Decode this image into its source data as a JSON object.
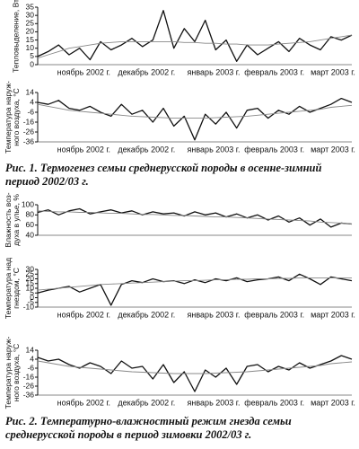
{
  "chart_data": [
    {
      "type": "line",
      "ylabel": [
        "Тепловыделение, Вт"
      ],
      "x": [
        0,
        5,
        10,
        15,
        20,
        25,
        30,
        35,
        40,
        45,
        50,
        55,
        60,
        65,
        70,
        75,
        80,
        85,
        90,
        95,
        100,
        105,
        110,
        115,
        120,
        125,
        130,
        135,
        140,
        145,
        150
      ],
      "xlim": [
        0,
        150
      ],
      "ylim": [
        0,
        35
      ],
      "yticks": [
        0,
        5,
        10,
        15,
        20,
        25,
        30,
        35
      ],
      "xticks": [
        {
          "value": 22,
          "label": "ноябрь 2002 г."
        },
        {
          "value": 52,
          "label": "декабрь 2002 г."
        },
        {
          "value": 84,
          "label": "январь 2003 г."
        },
        {
          "value": 113,
          "label": "февраль 2003 г."
        },
        {
          "value": 141,
          "label": "март 2003 г."
        }
      ],
      "series": [
        {
          "color": "#111",
          "values": [
            5,
            8,
            12,
            6,
            10,
            3,
            14,
            9,
            12,
            16,
            11,
            15,
            33,
            10,
            22,
            14,
            27,
            9,
            15,
            2,
            12,
            6,
            10,
            14,
            8,
            16,
            12,
            9,
            17,
            15,
            18
          ]
        },
        {
          "color": "#888",
          "values": [
            4,
            6,
            8,
            10,
            11,
            12,
            13,
            13.5,
            14,
            14,
            14,
            14,
            14,
            14,
            13.5,
            13.5,
            13,
            13,
            12.5,
            12.5,
            12,
            12,
            12,
            12.5,
            13,
            13.5,
            14,
            15,
            16,
            17,
            18
          ]
        }
      ]
    },
    {
      "type": "line",
      "ylabel": [
        "Температура наруж-",
        "ного воздуха, °С"
      ],
      "x": [
        0,
        5,
        10,
        15,
        20,
        25,
        30,
        35,
        40,
        45,
        50,
        55,
        60,
        65,
        70,
        75,
        80,
        85,
        90,
        95,
        100,
        105,
        110,
        115,
        120,
        125,
        130,
        135,
        140,
        145,
        150
      ],
      "xlim": [
        0,
        150
      ],
      "ylim": [
        -36,
        14
      ],
      "yticks": [
        14,
        4,
        -6,
        -16,
        -26,
        -36
      ],
      "xticks": [
        {
          "value": 22,
          "label": "ноябрь 2002 г."
        },
        {
          "value": 52,
          "label": "декабрь 2002 г."
        },
        {
          "value": 84,
          "label": "январь 2003 г."
        },
        {
          "value": 113,
          "label": "февраль 2003 г."
        },
        {
          "value": 141,
          "label": "март 2003 г."
        }
      ],
      "series": [
        {
          "color": "#111",
          "values": [
            4,
            2,
            6,
            -2,
            -4,
            0,
            -6,
            -10,
            2,
            -8,
            -4,
            -16,
            -2,
            -20,
            -10,
            -34,
            -8,
            -18,
            -6,
            -22,
            -4,
            -2,
            -12,
            -4,
            -8,
            0,
            -6,
            -2,
            2,
            8,
            4
          ]
        },
        {
          "color": "#888",
          "values": [
            2,
            0,
            -2,
            -4,
            -5,
            -6,
            -7,
            -8,
            -9,
            -10,
            -10.5,
            -11,
            -11.5,
            -12,
            -12,
            -12,
            -12,
            -11.5,
            -11,
            -10.5,
            -10,
            -9,
            -8,
            -7,
            -6,
            -5,
            -4,
            -3,
            -1,
            0,
            1
          ]
        }
      ]
    },
    {
      "type": "line",
      "ylabel": [
        "Влажность воз-",
        "духа в улье, %"
      ],
      "x": [
        0,
        5,
        10,
        15,
        20,
        25,
        30,
        35,
        40,
        45,
        50,
        55,
        60,
        65,
        70,
        75,
        80,
        85,
        90,
        95,
        100,
        105,
        110,
        115,
        120,
        125,
        130,
        135,
        140,
        145,
        150
      ],
      "xlim": [
        0,
        150
      ],
      "ylim": [
        40,
        100
      ],
      "yticks": [
        40,
        60,
        80,
        100
      ],
      "series": [
        {
          "color": "#111",
          "values": [
            85,
            90,
            80,
            88,
            92,
            82,
            86,
            90,
            84,
            88,
            80,
            86,
            82,
            84,
            78,
            86,
            80,
            84,
            76,
            82,
            74,
            80,
            70,
            78,
            66,
            74,
            60,
            72,
            56,
            64,
            62
          ]
        },
        {
          "color": "#888",
          "values": [
            88,
            87,
            86,
            86,
            85,
            85,
            84,
            83,
            83,
            82,
            81,
            81,
            80,
            79,
            79,
            78,
            77,
            76,
            76,
            75,
            74,
            73,
            72,
            71,
            70,
            69,
            68,
            66,
            65,
            64,
            62
          ]
        }
      ]
    },
    {
      "type": "line",
      "ylabel": [
        "Температура над",
        "гнездом, °С"
      ],
      "x": [
        0,
        5,
        10,
        15,
        20,
        25,
        30,
        35,
        40,
        45,
        50,
        55,
        60,
        65,
        70,
        75,
        80,
        85,
        90,
        95,
        100,
        105,
        110,
        115,
        120,
        125,
        130,
        135,
        140,
        145,
        150
      ],
      "xlim": [
        0,
        150
      ],
      "ylim": [
        -10,
        30
      ],
      "yticks": [
        -10,
        -5,
        0,
        5,
        10,
        15,
        20,
        25,
        30
      ],
      "xticks": [
        {
          "value": 22,
          "label": "ноябрь 2002 г."
        },
        {
          "value": 52,
          "label": "декабрь 2002 г."
        },
        {
          "value": 84,
          "label": "январь 2003 г."
        },
        {
          "value": 113,
          "label": "февраль 2003 г."
        },
        {
          "value": 141,
          "label": "март 2003 г."
        }
      ],
      "series": [
        {
          "color": "#111",
          "values": [
            5,
            8,
            10,
            12,
            6,
            10,
            14,
            -8,
            14,
            18,
            16,
            20,
            17,
            18,
            15,
            19,
            16,
            20,
            18,
            21,
            17,
            19,
            20,
            22,
            18,
            25,
            20,
            14,
            22,
            20,
            18
          ]
        },
        {
          "color": "#888",
          "values": [
            8,
            9,
            10,
            11,
            12,
            13,
            14,
            14.5,
            15,
            15.5,
            16,
            16.5,
            17,
            17.5,
            18,
            18,
            18.5,
            19,
            19,
            19.5,
            19.5,
            20,
            20,
            20.5,
            20.5,
            21,
            21,
            21,
            21,
            21,
            21
          ]
        }
      ]
    },
    {
      "type": "line",
      "ylabel": [
        "Температура наруж-",
        "ного воздуха, °С"
      ],
      "x": [
        0,
        5,
        10,
        15,
        20,
        25,
        30,
        35,
        40,
        45,
        50,
        55,
        60,
        65,
        70,
        75,
        80,
        85,
        90,
        95,
        100,
        105,
        110,
        115,
        120,
        125,
        130,
        135,
        140,
        145,
        150
      ],
      "xlim": [
        0,
        150
      ],
      "ylim": [
        -36,
        14
      ],
      "yticks": [
        14,
        4,
        -6,
        -16,
        -26,
        -36
      ],
      "xticks": [
        {
          "value": 22,
          "label": "ноябрь 2002 г."
        },
        {
          "value": 52,
          "label": "декабрь 2002 г."
        },
        {
          "value": 84,
          "label": "январь 2003 г."
        },
        {
          "value": 113,
          "label": "февраль 2003 г."
        },
        {
          "value": 141,
          "label": "март 2003 г."
        }
      ],
      "series": [
        {
          "color": "#111",
          "values": [
            6,
            2,
            4,
            -2,
            -6,
            0,
            -4,
            -12,
            2,
            -6,
            -4,
            -18,
            -2,
            -22,
            -10,
            -32,
            -8,
            -16,
            -6,
            -24,
            -4,
            -2,
            -10,
            -4,
            -8,
            0,
            -6,
            -2,
            2,
            8,
            4
          ]
        },
        {
          "color": "#888",
          "values": [
            2,
            0,
            -2,
            -4,
            -5,
            -6,
            -7,
            -8,
            -9,
            -10,
            -10.5,
            -11,
            -11.5,
            -12,
            -12,
            -12,
            -12,
            -11.5,
            -11,
            -10.5,
            -10,
            -9,
            -8,
            -7,
            -6,
            -5,
            -4,
            -3,
            -1,
            0,
            1
          ]
        }
      ]
    }
  ],
  "captions": [
    "Рис. 1. Термогенез семьи среднерусской породы в осенне-зимний период 2002/03 г.",
    "Рис. 2. Температурно-влажностный режим гнезда семьи среднерусской породы в период зимовки 2002/03 г."
  ]
}
